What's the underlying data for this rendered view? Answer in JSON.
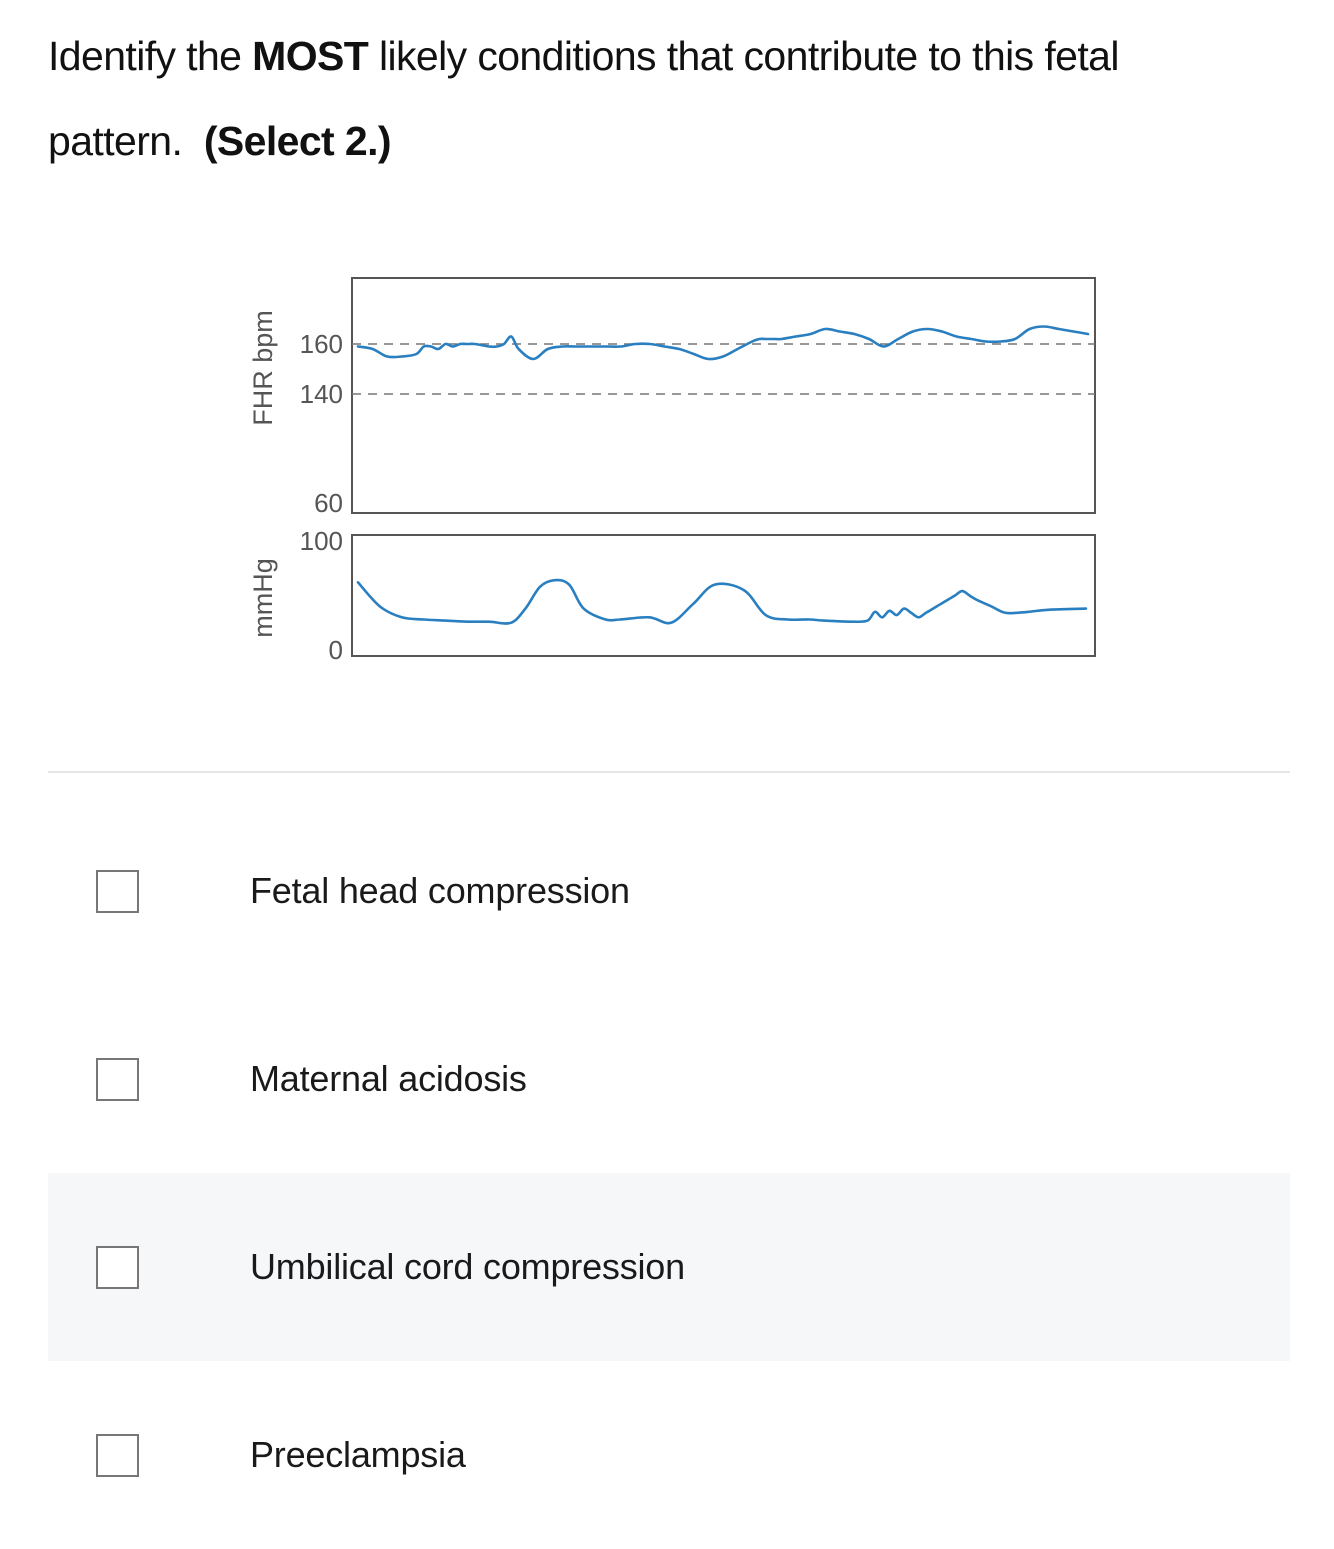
{
  "question": {
    "part1": "Identify the ",
    "emphasis": "MOST",
    "part2": " likely conditions that contribute to this fetal pattern.",
    "select_hint": "(Select 2.)"
  },
  "chart_data": [
    {
      "type": "line",
      "ylabel": "FHR bpm",
      "yticks": [
        60,
        140,
        160
      ],
      "reference_lines": [
        140,
        160
      ],
      "grid": false,
      "series_color": "#2a7fc0",
      "x": [
        0,
        2,
        4,
        6,
        8,
        9,
        10,
        11,
        12,
        13,
        14,
        15,
        16,
        18,
        19,
        20,
        21,
        22,
        24,
        26,
        28,
        30,
        32,
        34,
        36,
        38,
        40,
        42,
        44,
        46,
        48,
        50,
        52,
        54,
        55,
        56,
        57,
        58,
        60,
        62,
        64,
        66,
        68,
        70,
        72,
        74,
        76,
        78,
        80,
        82,
        84,
        86,
        88,
        90,
        92,
        94,
        96,
        98,
        100
      ],
      "values": [
        159,
        158,
        155,
        155,
        156,
        159,
        159,
        158,
        160,
        159,
        160,
        160,
        160,
        159,
        159,
        160,
        163,
        158,
        154,
        158,
        159,
        159,
        159,
        159,
        159,
        160,
        160,
        159,
        158,
        156,
        154,
        155,
        158,
        161,
        162,
        162,
        162,
        162,
        163,
        164,
        166,
        165,
        164,
        162,
        159,
        162,
        165,
        166,
        165,
        163,
        162,
        161,
        161,
        162,
        166,
        167,
        166,
        165,
        164
      ]
    },
    {
      "type": "line",
      "ylabel": "mmHg",
      "yticks": [
        0,
        100
      ],
      "ylim": [
        0,
        100
      ],
      "grid": false,
      "series_color": "#2a7fc0",
      "x": [
        0,
        3,
        6,
        9,
        12,
        15,
        18,
        21,
        23,
        25,
        27,
        29,
        31,
        34,
        36,
        40,
        43,
        46,
        49,
        53,
        56,
        59,
        62,
        64,
        68,
        70,
        71,
        72,
        73,
        74,
        75,
        76,
        77,
        78,
        79,
        80,
        81,
        82,
        83,
        84,
        85,
        87,
        89,
        92,
        95,
        100
      ],
      "values": [
        62,
        40,
        30,
        28,
        27,
        26,
        26,
        25,
        38,
        58,
        64,
        60,
        38,
        28,
        28,
        30,
        25,
        42,
        60,
        55,
        32,
        28,
        28,
        27,
        26,
        27,
        35,
        30,
        36,
        32,
        38,
        34,
        30,
        34,
        38,
        42,
        46,
        50,
        54,
        50,
        46,
        40,
        34,
        35,
        37,
        38
      ]
    }
  ],
  "options": [
    {
      "label": "Fetal head compression"
    },
    {
      "label": "Maternal acidosis"
    },
    {
      "label": "Umbilical cord compression"
    },
    {
      "label": "Preeclampsia"
    }
  ]
}
